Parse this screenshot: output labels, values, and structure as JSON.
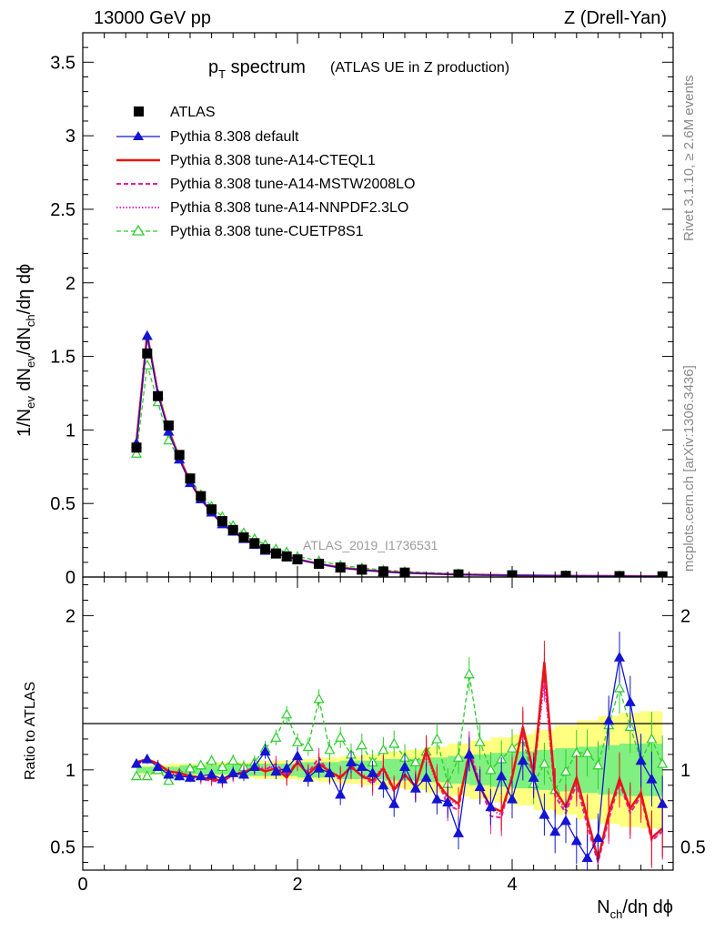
{
  "header": {
    "left": "13000 GeV pp",
    "right": "Z (Drell-Yan)"
  },
  "side_labels": {
    "top": "Rivet 3.1.10, ≥ 2.6M events",
    "bottom": "mcplots.cern.ch [arXiv:1306.3436]"
  },
  "watermark": "ATLAS_2019_I1736531",
  "title": {
    "main_p": "p",
    "main_sub": "T",
    "main_rest": " spectrum",
    "sub": "(ATLAS UE in Z production)"
  },
  "colors": {
    "atlas": "#000000",
    "default": "#1414d2",
    "cteql1": "#e81414",
    "mstw": "#e61ea0",
    "nnpdf": "#ee28c8",
    "cuetp": "#2ccc2c",
    "band_yellow": "#ffff80",
    "band_green": "#80f080"
  },
  "chart_data": [
    {
      "type": "line",
      "title": "",
      "xlabel": "",
      "ylabel": "1/N_ev dN_ev/dN_ch/dη dϕ",
      "ylabel_parts": {
        "p1": "1/N",
        "s1": "ev",
        "p2": " dN",
        "s2": "ev",
        "p3": "/dN",
        "s3": "ch",
        "p4": "/dη dϕ"
      },
      "xlim": [
        0,
        5.5
      ],
      "ylim": [
        0,
        3.7
      ],
      "yticks": [
        "0",
        "0.5",
        "1",
        "1.5",
        "2",
        "2.5",
        "3",
        "3.5"
      ],
      "x": [
        0.5,
        0.6,
        0.7,
        0.8,
        0.9,
        1.0,
        1.1,
        1.2,
        1.3,
        1.4,
        1.5,
        1.6,
        1.7,
        1.8,
        1.9,
        2.0,
        2.2,
        2.4,
        2.6,
        2.8,
        3.0,
        3.5,
        4.0,
        4.5,
        5.0,
        5.4
      ],
      "series": [
        {
          "name": "ATLAS",
          "values": [
            0.88,
            1.52,
            1.23,
            1.03,
            0.83,
            0.67,
            0.55,
            0.46,
            0.38,
            0.32,
            0.27,
            0.23,
            0.19,
            0.16,
            0.14,
            0.12,
            0.09,
            0.065,
            0.05,
            0.038,
            0.03,
            0.018,
            0.012,
            0.008,
            0.006,
            0.005
          ]
        },
        {
          "name": "Pythia 8.308 default",
          "values": [
            0.91,
            1.64,
            1.24,
            0.99,
            0.8,
            0.64,
            0.53,
            0.44,
            0.36,
            0.31,
            0.26,
            0.22,
            0.18,
            0.16,
            0.14,
            0.12,
            0.09,
            0.062,
            0.048,
            0.036,
            0.028,
            0.017,
            0.011,
            0.008,
            0.006,
            0.005
          ]
        },
        {
          "name": "Pythia 8.308 tune-A14-CTEQL1",
          "values": [
            0.92,
            1.65,
            1.25,
            1.0,
            0.81,
            0.65,
            0.53,
            0.44,
            0.36,
            0.31,
            0.26,
            0.22,
            0.19,
            0.16,
            0.14,
            0.12,
            0.09,
            0.064,
            0.049,
            0.037,
            0.029,
            0.017,
            0.011,
            0.008,
            0.006,
            0.005
          ]
        },
        {
          "name": "Pythia 8.308 tune-A14-MSTW2008LO",
          "values": [
            0.92,
            1.65,
            1.25,
            1.0,
            0.81,
            0.64,
            0.53,
            0.44,
            0.36,
            0.31,
            0.26,
            0.22,
            0.19,
            0.16,
            0.14,
            0.12,
            0.09,
            0.064,
            0.049,
            0.037,
            0.029,
            0.017,
            0.011,
            0.008,
            0.006,
            0.005
          ]
        },
        {
          "name": "Pythia 8.308 tune-A14-NNPDF2.3LO",
          "values": [
            0.91,
            1.64,
            1.25,
            1.0,
            0.8,
            0.64,
            0.53,
            0.44,
            0.36,
            0.31,
            0.26,
            0.22,
            0.19,
            0.16,
            0.14,
            0.12,
            0.09,
            0.064,
            0.049,
            0.037,
            0.029,
            0.017,
            0.011,
            0.008,
            0.006,
            0.005
          ]
        },
        {
          "name": "Pythia 8.308 tune-CUETP8S1",
          "values": [
            0.84,
            1.44,
            1.19,
            0.93,
            0.8,
            0.67,
            0.56,
            0.48,
            0.41,
            0.35,
            0.3,
            0.26,
            0.22,
            0.19,
            0.17,
            0.14,
            0.11,
            0.08,
            0.062,
            0.048,
            0.037,
            0.022,
            0.014,
            0.01,
            0.007,
            0.006
          ]
        }
      ],
      "legend": "top-left"
    },
    {
      "type": "line",
      "title": "",
      "xlabel": "N_ch/dη dϕ",
      "xlabel_parts": {
        "p1": "N",
        "s1": "ch",
        "p2": "/dη dϕ"
      },
      "ylabel": "Ratio to ATLAS",
      "xlim": [
        0,
        5.5
      ],
      "ylim": [
        0.35,
        2.25
      ],
      "xticks": [
        "0",
        "2",
        "4"
      ],
      "yticks": [
        "0.5",
        "1",
        "2"
      ],
      "band_edges": [
        0.5,
        0.6,
        0.7,
        0.8,
        0.9,
        1.0,
        1.2,
        1.4,
        1.6,
        1.8,
        2.0,
        2.2,
        2.4,
        2.6,
        2.8,
        3.0,
        3.2,
        3.4,
        3.6,
        3.8,
        4.0,
        4.2,
        4.4,
        4.6,
        4.8,
        5.0,
        5.2,
        5.4
      ],
      "band_yellow_halfwidth": [
        0.03,
        0.03,
        0.03,
        0.04,
        0.04,
        0.04,
        0.05,
        0.05,
        0.06,
        0.06,
        0.07,
        0.08,
        0.09,
        0.1,
        0.12,
        0.13,
        0.15,
        0.17,
        0.19,
        0.21,
        0.23,
        0.26,
        0.29,
        0.32,
        0.35,
        0.37,
        0.38
      ],
      "band_green_halfwidth": [
        0.02,
        0.02,
        0.02,
        0.02,
        0.03,
        0.03,
        0.03,
        0.04,
        0.04,
        0.04,
        0.05,
        0.05,
        0.06,
        0.06,
        0.07,
        0.07,
        0.08,
        0.09,
        0.1,
        0.11,
        0.12,
        0.13,
        0.14,
        0.15,
        0.16,
        0.17,
        0.17
      ],
      "x": [
        0.5,
        0.6,
        0.7,
        0.8,
        0.9,
        1.0,
        1.1,
        1.2,
        1.3,
        1.4,
        1.5,
        1.6,
        1.7,
        1.8,
        1.9,
        2.0,
        2.1,
        2.2,
        2.3,
        2.4,
        2.5,
        2.6,
        2.7,
        2.8,
        2.9,
        3.0,
        3.1,
        3.2,
        3.3,
        3.4,
        3.5,
        3.6,
        3.7,
        3.8,
        3.9,
        4.0,
        4.1,
        4.2,
        4.3,
        4.4,
        4.5,
        4.6,
        4.7,
        4.8,
        4.9,
        5.0,
        5.1,
        5.2,
        5.3,
        5.4
      ],
      "series": [
        {
          "name": "Pythia 8.308 default",
          "values": [
            1.04,
            1.07,
            1.02,
            0.97,
            0.96,
            0.95,
            0.96,
            0.97,
            0.94,
            0.98,
            0.97,
            1.02,
            1.12,
            0.99,
            1.01,
            1.09,
            0.95,
            1.01,
            0.98,
            0.84,
            1.05,
            1.02,
            0.98,
            0.9,
            0.78,
            1.02,
            0.88,
            0.95,
            0.81,
            0.79,
            0.59,
            1.1,
            0.89,
            0.76,
            0.96,
            0.81,
            1.06,
            0.95,
            0.71,
            0.6,
            0.67,
            0.54,
            0.43,
            0.56,
            1.32,
            1.73,
            1.44,
            1.06,
            0.94,
            0.78
          ]
        },
        {
          "name": "Pythia 8.308 tune-A14-CTEQL1",
          "values": [
            1.05,
            1.07,
            1.04,
            0.99,
            0.98,
            0.96,
            0.95,
            0.94,
            0.93,
            0.97,
            0.98,
            1.02,
            0.99,
            1.01,
            0.95,
            1.05,
            0.97,
            1.04,
            0.99,
            0.95,
            1.02,
            0.96,
            0.93,
            1.01,
            0.87,
            0.97,
            0.89,
            1.13,
            0.92,
            0.83,
            0.78,
            1.1,
            0.89,
            0.76,
            0.73,
            0.95,
            1.28,
            0.98,
            1.7,
            0.87,
            0.76,
            0.95,
            0.69,
            0.42,
            0.72,
            0.94,
            0.75,
            0.85,
            0.56,
            0.62
          ]
        },
        {
          "name": "Pythia 8.308 tune-A14-MSTW2008LO",
          "values": [
            1.04,
            1.06,
            1.04,
            0.99,
            0.97,
            0.95,
            0.94,
            0.93,
            0.92,
            0.97,
            0.99,
            1.01,
            1.0,
            1.04,
            0.96,
            1.06,
            0.98,
            1.08,
            0.97,
            0.94,
            1.03,
            0.96,
            0.91,
            1.0,
            0.86,
            0.97,
            0.9,
            1.12,
            0.94,
            0.77,
            0.74,
            1.14,
            0.91,
            0.7,
            0.69,
            0.97,
            1.26,
            0.95,
            1.63,
            0.83,
            0.72,
            0.91,
            0.64,
            0.4,
            0.68,
            0.92,
            0.72,
            0.83,
            0.54,
            0.6
          ]
        },
        {
          "name": "Pythia 8.308 tune-A14-NNPDF2.3LO",
          "values": [
            1.04,
            1.07,
            1.03,
            0.98,
            0.97,
            0.96,
            0.95,
            0.94,
            0.93,
            0.96,
            0.98,
            1.02,
            1.01,
            1.02,
            0.97,
            1.05,
            0.97,
            1.05,
            0.98,
            0.96,
            1.01,
            0.97,
            0.94,
            1.02,
            0.88,
            0.96,
            0.9,
            1.1,
            0.91,
            0.81,
            0.77,
            1.12,
            0.9,
            0.74,
            0.71,
            0.96,
            1.25,
            0.97,
            1.58,
            0.85,
            0.74,
            0.93,
            0.67,
            0.41,
            0.7,
            0.95,
            0.73,
            0.86,
            0.55,
            0.61
          ]
        },
        {
          "name": "Pythia 8.308 tune-CUETP8S1",
          "values": [
            0.96,
            0.96,
            1.0,
            0.93,
            0.98,
            1.01,
            1.03,
            1.06,
            1.02,
            1.06,
            1.02,
            1.05,
            1.14,
            1.21,
            1.36,
            1.18,
            1.15,
            1.46,
            1.13,
            1.21,
            1.1,
            1.16,
            1.05,
            1.13,
            1.17,
            1.08,
            1.05,
            1.12,
            1.2,
            0.91,
            1.08,
            1.62,
            1.18,
            1.0,
            1.07,
            1.14,
            1.2,
            0.91,
            1.04,
            0.87,
            0.99,
            1.11,
            1.11,
            1.03,
            1.29,
            1.53,
            1.28,
            1.06,
            1.2,
            1.04
          ]
        }
      ],
      "reference_line": 1.0
    }
  ]
}
